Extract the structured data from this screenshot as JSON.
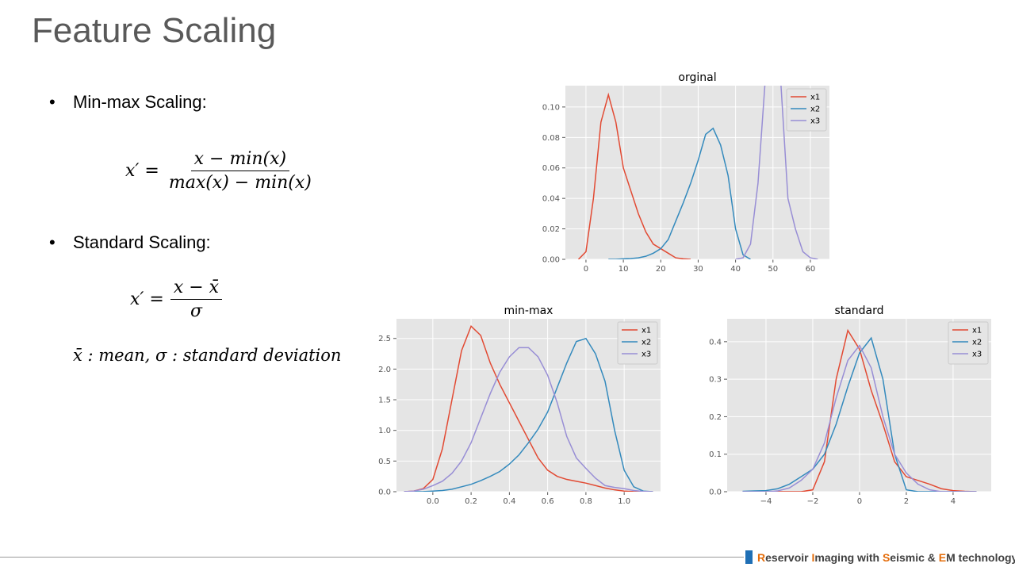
{
  "header": {
    "title": "Feature Scaling"
  },
  "bullets": [
    {
      "label": "Min-max Scaling:",
      "formula": {
        "lhs": "x′ =",
        "numerator": "x − min(x)",
        "denominator": "max(x) − min(x)"
      }
    },
    {
      "label": "Standard Scaling:",
      "formula": {
        "lhs": "x′ =",
        "numerator": "x − x̄",
        "denominator": "σ"
      },
      "note": "x̄ :  mean, σ : standard deviation"
    }
  ],
  "footer": {
    "parts": [
      "R",
      "eservoir ",
      "I",
      "maging with ",
      "S",
      "eismic & ",
      "E",
      "M technology"
    ]
  },
  "chart_data": [
    {
      "type": "line",
      "title": "orginal",
      "grid": true,
      "legend": "upper right",
      "x": [
        -2,
        0,
        2,
        4,
        6,
        8,
        10,
        12,
        14,
        16,
        18,
        20,
        22,
        24,
        26,
        28,
        30,
        32,
        34,
        36,
        38,
        40,
        42,
        44,
        46,
        48,
        50,
        52,
        54,
        56,
        58,
        60,
        62
      ],
      "xlim": [
        -5.5,
        65.1
      ],
      "xticks": [
        0,
        10,
        20,
        30,
        40,
        50,
        60
      ],
      "ylim": [
        0,
        0.114
      ],
      "yticks": [
        {
          "value": 0,
          "label": "0.00"
        },
        {
          "value": 0.02,
          "label": "0.02"
        },
        {
          "value": 0.04,
          "label": "0.04"
        },
        {
          "value": 0.06,
          "label": "0.06"
        },
        {
          "value": 0.08,
          "label": "0.08"
        },
        {
          "value": 0.1,
          "label": "0.10"
        }
      ],
      "series": [
        {
          "name": "x1",
          "color": "#e24a33",
          "values": [
            0,
            0.005,
            0.04,
            0.09,
            0.108,
            0.09,
            0.06,
            0.045,
            0.03,
            0.018,
            0.01,
            0.007,
            0.004,
            0.001,
            0.0003,
            0,
            null,
            null,
            null,
            null,
            null,
            null,
            null,
            null,
            null,
            null,
            null,
            null,
            null,
            null,
            null,
            null,
            null
          ]
        },
        {
          "name": "x2",
          "color": "#348abd",
          "values": [
            null,
            null,
            null,
            null,
            0,
            0,
            0.0003,
            0.0005,
            0.001,
            0.002,
            0.004,
            0.007,
            0.013,
            0.025,
            0.037,
            0.05,
            0.065,
            0.082,
            0.086,
            0.075,
            0.055,
            0.02,
            0.003,
            0,
            null,
            null,
            null,
            null,
            null,
            null,
            null,
            null,
            null
          ]
        },
        {
          "name": "x3",
          "color": "#988ed5",
          "values": [
            null,
            null,
            null,
            null,
            null,
            null,
            null,
            null,
            null,
            null,
            null,
            null,
            null,
            null,
            null,
            null,
            null,
            null,
            null,
            null,
            null,
            0,
            0.001,
            0.01,
            0.05,
            0.12,
            0.15,
            0.12,
            0.04,
            0.02,
            0.005,
            0.001,
            0
          ]
        }
      ]
    },
    {
      "type": "line",
      "title": "min-max",
      "grid": true,
      "legend": "upper right",
      "x": [
        -0.15,
        -0.1,
        -0.05,
        0,
        0.05,
        0.1,
        0.15,
        0.2,
        0.25,
        0.3,
        0.35,
        0.4,
        0.45,
        0.5,
        0.55,
        0.6,
        0.65,
        0.7,
        0.75,
        0.8,
        0.85,
        0.9,
        0.95,
        1,
        1.05,
        1.1,
        1.15
      ],
      "xlim": [
        -0.19,
        1.19
      ],
      "xticks": [
        {
          "value": 0,
          "label": "0.0"
        },
        {
          "value": 0.2,
          "label": "0.2"
        },
        {
          "value": 0.4,
          "label": "0.4"
        },
        {
          "value": 0.6,
          "label": "0.6"
        },
        {
          "value": 0.8,
          "label": "0.8"
        },
        {
          "value": 1,
          "label": "1.0"
        }
      ],
      "ylim": [
        0,
        2.82
      ],
      "yticks": [
        {
          "value": 0,
          "label": "0.0"
        },
        {
          "value": 0.5,
          "label": "0.5"
        },
        {
          "value": 1,
          "label": "1.0"
        },
        {
          "value": 1.5,
          "label": "1.5"
        },
        {
          "value": 2,
          "label": "2.0"
        },
        {
          "value": 2.5,
          "label": "2.5"
        }
      ],
      "series": [
        {
          "name": "x1",
          "color": "#e24a33",
          "values": [
            0,
            0.01,
            0.05,
            0.2,
            0.7,
            1.5,
            2.3,
            2.7,
            2.55,
            2.1,
            1.75,
            1.45,
            1.15,
            0.85,
            0.55,
            0.35,
            0.25,
            0.2,
            0.17,
            0.14,
            0.1,
            0.06,
            0.03,
            0.01,
            0.002,
            0,
            0
          ]
        },
        {
          "name": "x2",
          "color": "#348abd",
          "values": [
            0,
            0,
            0.002,
            0.01,
            0.02,
            0.04,
            0.08,
            0.12,
            0.18,
            0.25,
            0.33,
            0.45,
            0.6,
            0.8,
            1.02,
            1.3,
            1.7,
            2.1,
            2.45,
            2.5,
            2.25,
            1.8,
            1,
            0.35,
            0.08,
            0.01,
            0
          ]
        },
        {
          "name": "x3",
          "color": "#988ed5",
          "values": [
            0,
            0.01,
            0.04,
            0.1,
            0.17,
            0.3,
            0.5,
            0.8,
            1.2,
            1.6,
            1.95,
            2.2,
            2.35,
            2.35,
            2.2,
            1.9,
            1.45,
            0.9,
            0.55,
            0.38,
            0.22,
            0.1,
            0.07,
            0.05,
            0.02,
            0.005,
            0
          ]
        }
      ]
    },
    {
      "type": "line",
      "title": "standard",
      "grid": true,
      "legend": "upper right",
      "x": [
        -5,
        -4.5,
        -4,
        -3.5,
        -3,
        -2.5,
        -2,
        -1.5,
        -1,
        -0.5,
        0,
        0.5,
        1,
        1.5,
        2,
        2.5,
        3,
        3.5,
        4,
        4.5,
        5
      ],
      "xlim": [
        -5.66,
        5.63
      ],
      "xticks": [
        {
          "value": -4,
          "label": "−4"
        },
        {
          "value": -2,
          "label": "−2"
        },
        0,
        2,
        4
      ],
      "ylim": [
        0,
        0.461
      ],
      "yticks": [
        {
          "value": 0,
          "label": "0.0"
        },
        0.1,
        0.2,
        0.3,
        0.4
      ],
      "series": [
        {
          "name": "x1",
          "color": "#e24a33",
          "values": [
            0,
            0,
            0,
            0,
            0,
            0,
            0.005,
            0.08,
            0.3,
            0.43,
            0.38,
            0.27,
            0.18,
            0.08,
            0.04,
            0.03,
            0.02,
            0.008,
            0.003,
            0.001,
            0
          ]
        },
        {
          "name": "x2",
          "color": "#348abd",
          "values": [
            0.001,
            0.002,
            0.003,
            0.008,
            0.02,
            0.04,
            0.06,
            0.1,
            0.18,
            0.28,
            0.37,
            0.41,
            0.3,
            0.1,
            0.005,
            0,
            0,
            0,
            0,
            0,
            0
          ]
        },
        {
          "name": "x3",
          "color": "#988ed5",
          "values": [
            0,
            0,
            0,
            0.002,
            0.01,
            0.03,
            0.06,
            0.13,
            0.25,
            0.35,
            0.39,
            0.33,
            0.2,
            0.1,
            0.05,
            0.02,
            0.005,
            0,
            0,
            0,
            0
          ]
        }
      ]
    }
  ]
}
